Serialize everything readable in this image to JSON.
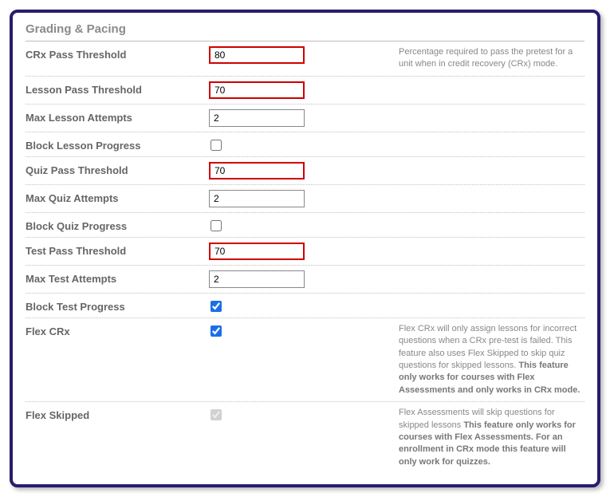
{
  "section_title": "Grading & Pacing",
  "rows": [
    {
      "label": "CRx Pass Threshold",
      "type": "text",
      "value": "80",
      "highlight": true,
      "desc_plain": "Percentage required to pass the pretest for a unit when in credit recovery (CRx) mode.",
      "desc_bold": ""
    },
    {
      "label": "Lesson Pass Threshold",
      "type": "text",
      "value": "70",
      "highlight": true,
      "desc_plain": "",
      "desc_bold": ""
    },
    {
      "label": "Max Lesson Attempts",
      "type": "text",
      "value": "2",
      "highlight": false,
      "desc_plain": "",
      "desc_bold": ""
    },
    {
      "label": "Block Lesson Progress",
      "type": "checkbox",
      "checked": false,
      "disabled": false,
      "desc_plain": "",
      "desc_bold": ""
    },
    {
      "label": "Quiz Pass Threshold",
      "type": "text",
      "value": "70",
      "highlight": true,
      "desc_plain": "",
      "desc_bold": ""
    },
    {
      "label": "Max Quiz Attempts",
      "type": "text",
      "value": "2",
      "highlight": false,
      "desc_plain": "",
      "desc_bold": ""
    },
    {
      "label": "Block Quiz Progress",
      "type": "checkbox",
      "checked": false,
      "disabled": false,
      "desc_plain": "",
      "desc_bold": ""
    },
    {
      "label": "Test Pass Threshold",
      "type": "text",
      "value": "70",
      "highlight": true,
      "desc_plain": "",
      "desc_bold": ""
    },
    {
      "label": "Max Test Attempts",
      "type": "text",
      "value": "2",
      "highlight": false,
      "desc_plain": "",
      "desc_bold": ""
    },
    {
      "label": "Block Test Progress",
      "type": "checkbox",
      "checked": true,
      "disabled": false,
      "desc_plain": "",
      "desc_bold": ""
    },
    {
      "label": "Flex CRx",
      "type": "checkbox",
      "checked": true,
      "disabled": false,
      "desc_plain": "Flex CRx will only assign lessons for incorrect questions when a CRx pre-test is failed. This feature also uses Flex Skipped to skip quiz questions for skipped lessons. ",
      "desc_bold": "This feature only works for courses with Flex Assessments and only works in CRx mode."
    },
    {
      "label": "Flex Skipped",
      "type": "checkbox",
      "checked": true,
      "disabled": true,
      "desc_plain": "Flex Assessments will skip questions for skipped lessons ",
      "desc_bold": "This feature only works for courses with Flex Assessments. For an enrollment in CRx mode this feature will only work for quizzes."
    }
  ]
}
